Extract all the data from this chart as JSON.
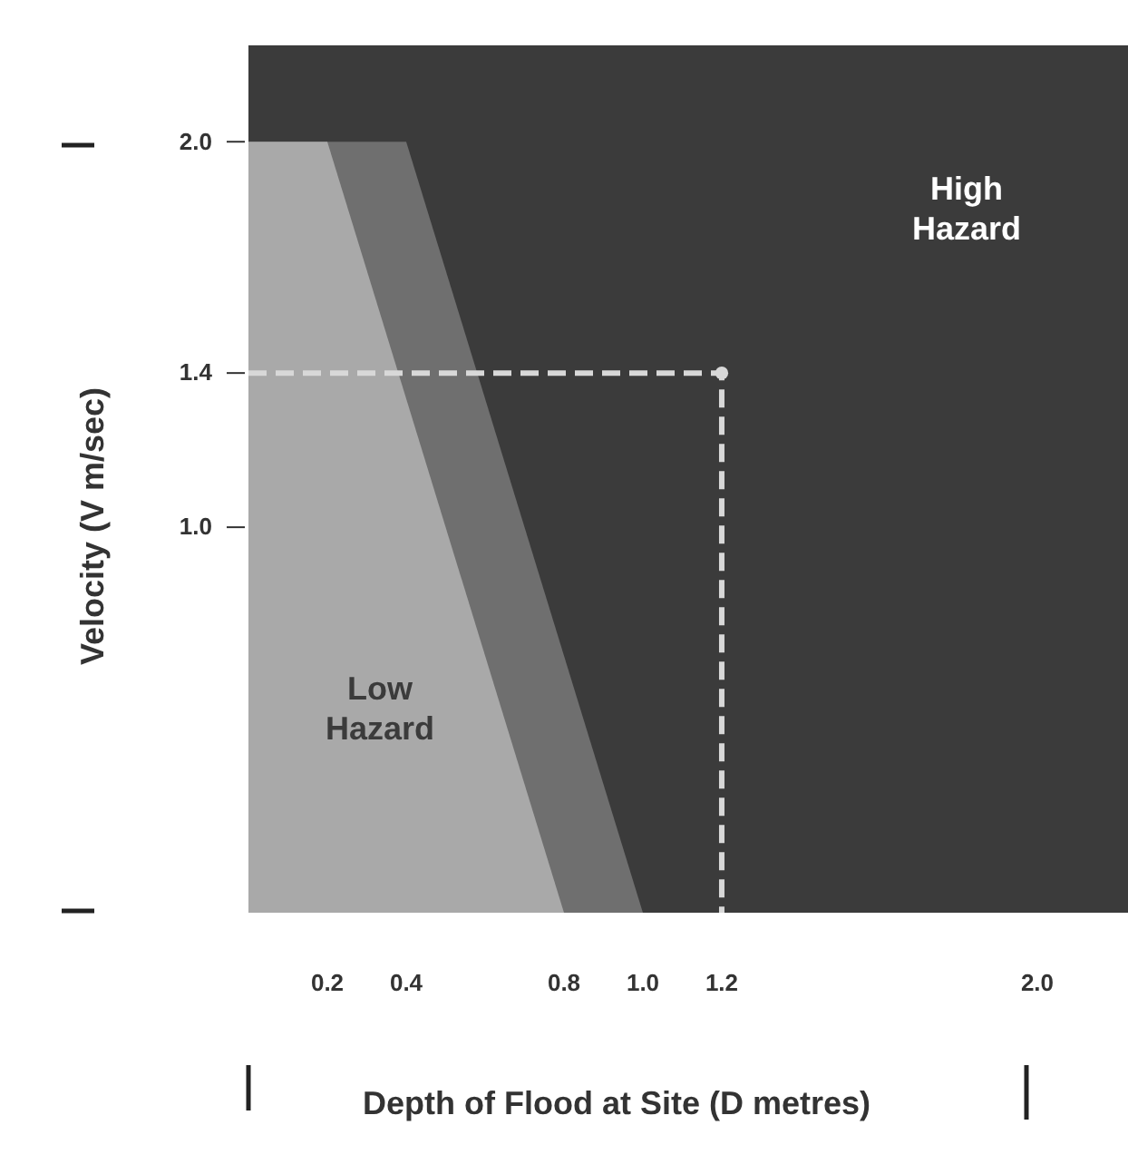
{
  "chart_data": {
    "type": "area",
    "xlabel": "Depth of Flood at Site (D metres)",
    "ylabel": "Velocity (V m/sec)",
    "annotations": [
      "High Hazard"
    ],
    "xlim": [
      0,
      2.23
    ],
    "ylim": [
      0,
      2.25
    ],
    "xticks": [
      0.2,
      0.4,
      0.8,
      {
        "value": 1,
        "label": "1.0"
      },
      1.2,
      {
        "value": 2,
        "label": "2.0"
      }
    ],
    "yticks": [
      {
        "value": 1,
        "label": "1.0"
      },
      1.4,
      {
        "value": 2,
        "label": "2.0"
      }
    ],
    "grid": false,
    "legend": false,
    "series": [
      {
        "color": "#6f6f6f",
        "x": [
          0,
          0.4,
          1.0
        ],
        "values": [
          2.0,
          2.0,
          0
        ]
      },
      {
        "name": "Low Hazard",
        "color": "#a9a9a9",
        "x": [
          0,
          0.2,
          0.8
        ],
        "values": [
          2.0,
          2.0,
          0
        ]
      },
      {
        "type": "line",
        "color": "#d8d8d8",
        "line_style": "dashed",
        "marker": "none",
        "x": [
          0,
          1.2,
          1.2
        ],
        "values": [
          1.4,
          1.4,
          0
        ]
      },
      {
        "type": "scatter",
        "color": "#d8d8d8",
        "marker": "circle",
        "x": [
          1.2
        ],
        "values": [
          1.4
        ]
      }
    ]
  }
}
